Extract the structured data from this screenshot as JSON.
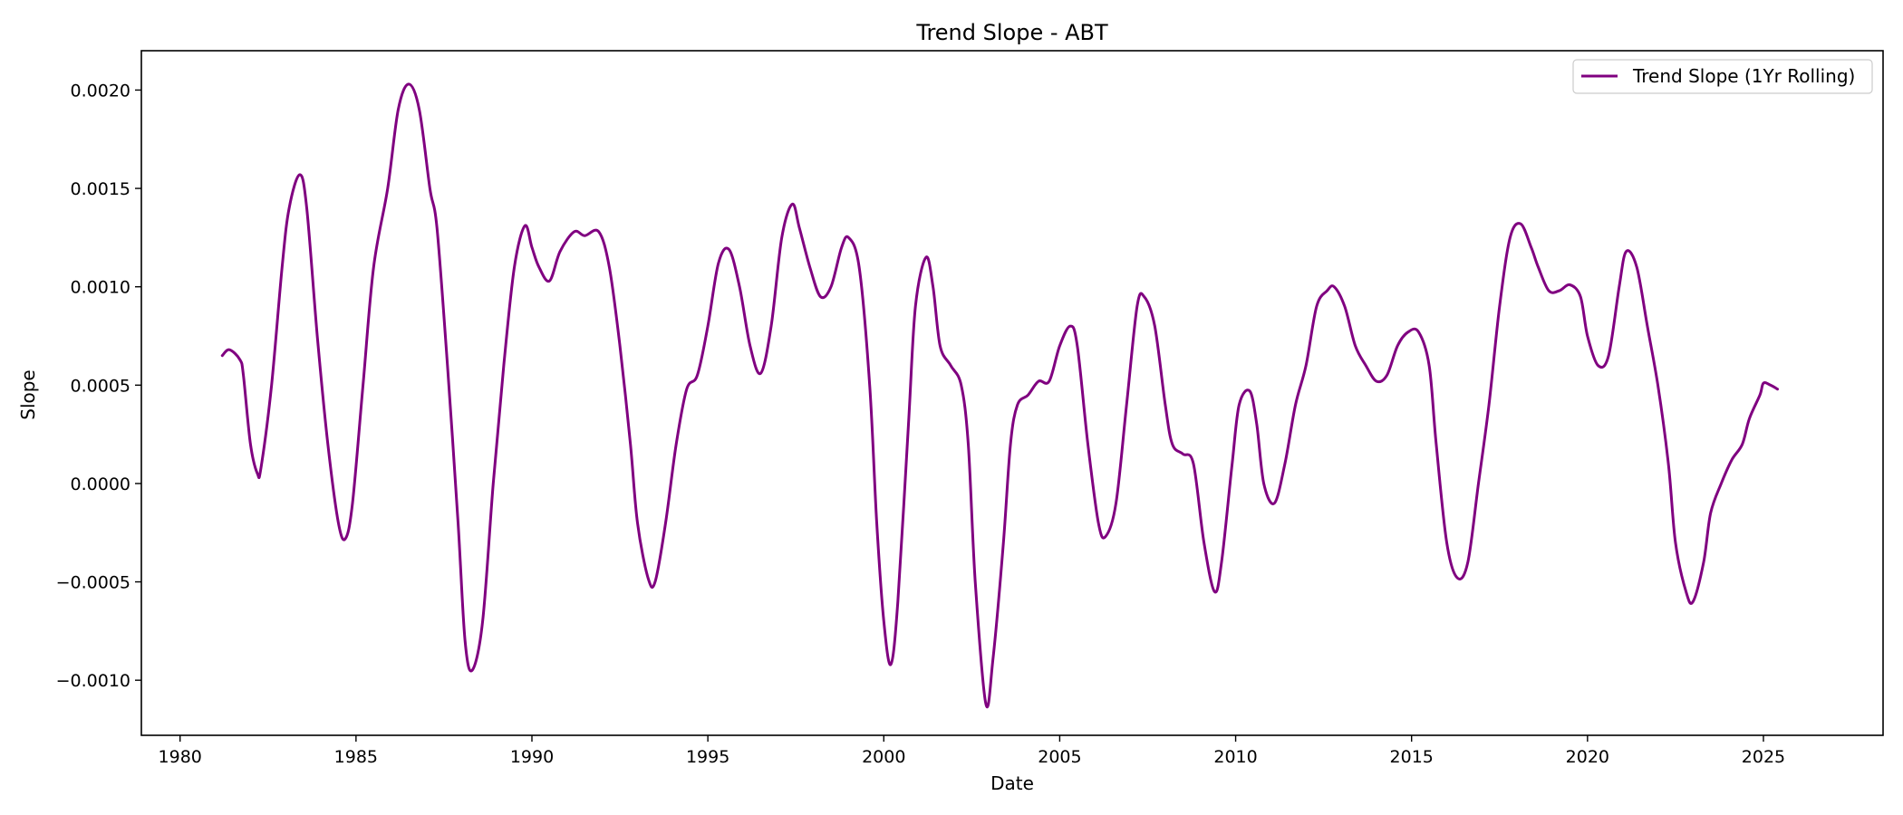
{
  "chart_data": {
    "type": "line",
    "title": "Trend Slope - ABT",
    "xlabel": "Date",
    "ylabel": "Slope",
    "xlim": [
      1978.9,
      2028.4
    ],
    "ylim": [
      -0.00128,
      0.0022
    ],
    "x_ticks": [
      1980,
      1985,
      1990,
      1995,
      2000,
      2005,
      2010,
      2015,
      2020,
      2025
    ],
    "x_tick_labels": [
      "1980",
      "1985",
      "1990",
      "1995",
      "2000",
      "2005",
      "2010",
      "2015",
      "2020",
      "2025"
    ],
    "y_ticks": [
      -0.001,
      -0.0005,
      0.0,
      0.0005,
      0.001,
      0.0015,
      0.002
    ],
    "y_tick_labels": [
      "−0.0010",
      "−0.0005",
      "0.0000",
      "0.0005",
      "0.0010",
      "0.0015",
      "0.0020"
    ],
    "grid": false,
    "legend": {
      "position": "top-right",
      "entries": [
        "Trend Slope (1Yr Rolling)"
      ]
    },
    "series": [
      {
        "name": "Trend Slope (1Yr Rolling)",
        "color": "#800080",
        "points": [
          [
            1981.2,
            0.00065
          ],
          [
            1981.4,
            0.00068
          ],
          [
            1981.7,
            0.00063
          ],
          [
            1981.8,
            0.00055
          ],
          [
            1982.0,
            0.0002
          ],
          [
            1982.2,
            5e-05
          ],
          [
            1982.3,
            8e-05
          ],
          [
            1982.6,
            0.0005
          ],
          [
            1982.9,
            0.0011
          ],
          [
            1983.1,
            0.0014
          ],
          [
            1983.4,
            0.00157
          ],
          [
            1983.6,
            0.0014
          ],
          [
            1983.9,
            0.00075
          ],
          [
            1984.2,
            0.0002
          ],
          [
            1984.5,
            -0.0002
          ],
          [
            1984.7,
            -0.00028
          ],
          [
            1984.9,
            -0.0001
          ],
          [
            1985.2,
            0.0005
          ],
          [
            1985.5,
            0.0011
          ],
          [
            1985.9,
            0.0015
          ],
          [
            1986.2,
            0.0019
          ],
          [
            1986.5,
            0.00203
          ],
          [
            1986.8,
            0.0019
          ],
          [
            1987.1,
            0.0015
          ],
          [
            1987.3,
            0.0013
          ],
          [
            1987.6,
            0.0006
          ],
          [
            1987.9,
            -0.0002
          ],
          [
            1988.1,
            -0.0008
          ],
          [
            1988.3,
            -0.00095
          ],
          [
            1988.6,
            -0.0007
          ],
          [
            1988.9,
            0.0
          ],
          [
            1989.2,
            0.0006
          ],
          [
            1989.5,
            0.0011
          ],
          [
            1989.8,
            0.00131
          ],
          [
            1990.0,
            0.0012
          ],
          [
            1990.2,
            0.0011
          ],
          [
            1990.5,
            0.00103
          ],
          [
            1990.8,
            0.00118
          ],
          [
            1991.2,
            0.00128
          ],
          [
            1991.5,
            0.00126
          ],
          [
            1991.9,
            0.00128
          ],
          [
            1992.2,
            0.0011
          ],
          [
            1992.5,
            0.0007
          ],
          [
            1992.8,
            0.0002
          ],
          [
            1993.0,
            -0.0002
          ],
          [
            1993.3,
            -0.00048
          ],
          [
            1993.5,
            -0.0005
          ],
          [
            1993.8,
            -0.0002
          ],
          [
            1994.1,
            0.0002
          ],
          [
            1994.4,
            0.00048
          ],
          [
            1994.7,
            0.00055
          ],
          [
            1995.0,
            0.0008
          ],
          [
            1995.3,
            0.00112
          ],
          [
            1995.6,
            0.00119
          ],
          [
            1995.9,
            0.001
          ],
          [
            1996.2,
            0.0007
          ],
          [
            1996.5,
            0.00056
          ],
          [
            1996.8,
            0.0008
          ],
          [
            1997.1,
            0.00125
          ],
          [
            1997.4,
            0.00142
          ],
          [
            1997.6,
            0.0013
          ],
          [
            1997.9,
            0.0011
          ],
          [
            1998.2,
            0.00095
          ],
          [
            1998.5,
            0.001
          ],
          [
            1998.8,
            0.0012
          ],
          [
            1999.0,
            0.00125
          ],
          [
            1999.3,
            0.0011
          ],
          [
            1999.6,
            0.0005
          ],
          [
            1999.8,
            -0.0002
          ],
          [
            2000.0,
            -0.0007
          ],
          [
            2000.2,
            -0.00092
          ],
          [
            2000.4,
            -0.0006
          ],
          [
            2000.7,
            0.0003
          ],
          [
            2000.9,
            0.0009
          ],
          [
            2001.2,
            0.00115
          ],
          [
            2001.4,
            0.001
          ],
          [
            2001.6,
            0.0007
          ],
          [
            2001.9,
            0.0006
          ],
          [
            2002.2,
            0.0005
          ],
          [
            2002.4,
            0.0002
          ],
          [
            2002.6,
            -0.0005
          ],
          [
            2002.9,
            -0.00112
          ],
          [
            2003.1,
            -0.0009
          ],
          [
            2003.4,
            -0.0003
          ],
          [
            2003.6,
            0.0002
          ],
          [
            2003.8,
            0.0004
          ],
          [
            2004.1,
            0.00045
          ],
          [
            2004.4,
            0.00052
          ],
          [
            2004.7,
            0.00052
          ],
          [
            2005.0,
            0.0007
          ],
          [
            2005.3,
            0.0008
          ],
          [
            2005.5,
            0.0007
          ],
          [
            2005.8,
            0.0002
          ],
          [
            2006.1,
            -0.0002
          ],
          [
            2006.3,
            -0.00027
          ],
          [
            2006.6,
            -0.0001
          ],
          [
            2006.9,
            0.0004
          ],
          [
            2007.2,
            0.0009
          ],
          [
            2007.4,
            0.00095
          ],
          [
            2007.7,
            0.0008
          ],
          [
            2008.0,
            0.0004
          ],
          [
            2008.2,
            0.0002
          ],
          [
            2008.5,
            0.00015
          ],
          [
            2008.8,
            0.0001
          ],
          [
            2009.1,
            -0.0003
          ],
          [
            2009.4,
            -0.00055
          ],
          [
            2009.6,
            -0.0004
          ],
          [
            2009.9,
            0.0001
          ],
          [
            2010.1,
            0.0004
          ],
          [
            2010.4,
            0.00047
          ],
          [
            2010.6,
            0.0003
          ],
          [
            2010.8,
            0.0
          ],
          [
            2011.1,
            -0.0001
          ],
          [
            2011.4,
            0.0001
          ],
          [
            2011.7,
            0.0004
          ],
          [
            2012.0,
            0.0006
          ],
          [
            2012.3,
            0.0009
          ],
          [
            2012.6,
            0.00098
          ],
          [
            2012.8,
            0.001
          ],
          [
            2013.1,
            0.0009
          ],
          [
            2013.4,
            0.0007
          ],
          [
            2013.7,
            0.0006
          ],
          [
            2014.0,
            0.00052
          ],
          [
            2014.3,
            0.00055
          ],
          [
            2014.6,
            0.0007
          ],
          [
            2014.9,
            0.00077
          ],
          [
            2015.2,
            0.00077
          ],
          [
            2015.5,
            0.0006
          ],
          [
            2015.7,
            0.0002
          ],
          [
            2016.0,
            -0.0003
          ],
          [
            2016.3,
            -0.00048
          ],
          [
            2016.6,
            -0.0004
          ],
          [
            2016.9,
            0.0
          ],
          [
            2017.2,
            0.0004
          ],
          [
            2017.5,
            0.0009
          ],
          [
            2017.8,
            0.00125
          ],
          [
            2018.1,
            0.00132
          ],
          [
            2018.4,
            0.0012
          ],
          [
            2018.6,
            0.0011
          ],
          [
            2018.9,
            0.00098
          ],
          [
            2019.2,
            0.00098
          ],
          [
            2019.5,
            0.00101
          ],
          [
            2019.8,
            0.00095
          ],
          [
            2020.0,
            0.00075
          ],
          [
            2020.3,
            0.0006
          ],
          [
            2020.6,
            0.00065
          ],
          [
            2020.9,
            0.001
          ],
          [
            2021.1,
            0.00118
          ],
          [
            2021.4,
            0.0011
          ],
          [
            2021.7,
            0.0008
          ],
          [
            2022.0,
            0.0005
          ],
          [
            2022.3,
            0.0001
          ],
          [
            2022.5,
            -0.0003
          ],
          [
            2022.8,
            -0.00055
          ],
          [
            2023.0,
            -0.0006
          ],
          [
            2023.3,
            -0.0004
          ],
          [
            2023.5,
            -0.00015
          ],
          [
            2023.8,
            0.0
          ],
          [
            2024.1,
            0.00012
          ],
          [
            2024.4,
            0.0002
          ],
          [
            2024.6,
            0.00033
          ],
          [
            2024.9,
            0.00045
          ],
          [
            2025.0,
            0.00051
          ],
          [
            2025.2,
            0.0005
          ],
          [
            2025.4,
            0.00048
          ]
        ]
      }
    ]
  }
}
